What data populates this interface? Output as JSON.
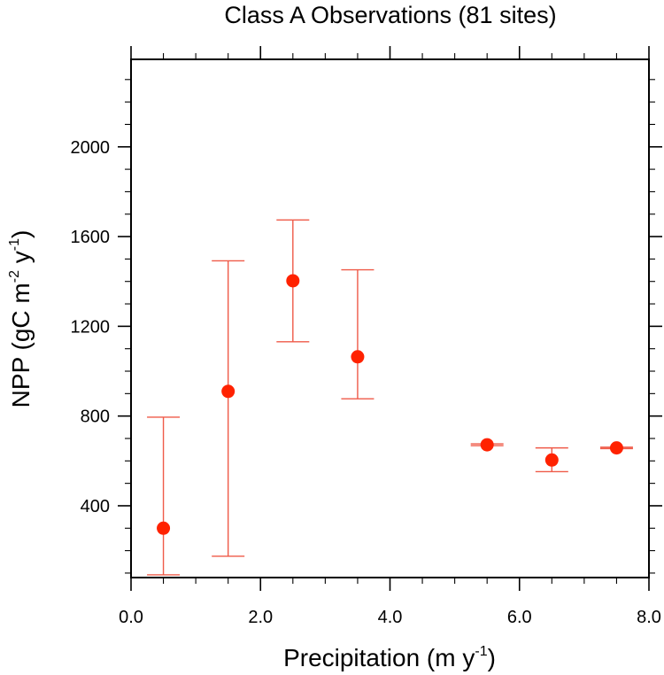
{
  "chart_data": {
    "type": "scatter",
    "title": "Class A Observations (81 sites)",
    "xlabel": "Precipitation (m y^-1)",
    "xlabel_parts": {
      "base": "Precipitation (m y",
      "sup": "-1",
      "tail": ")"
    },
    "ylabel": "NPP (gC m^-2 y^-1)",
    "ylabel_parts": {
      "p1": "NPP (gC m",
      "sup1": "-2",
      "p2": " y",
      "sup2": "-1",
      "tail": ")"
    },
    "xlim": [
      0,
      8
    ],
    "ylim": [
      80,
      2390
    ],
    "x_major_ticks": [
      0,
      2,
      4,
      6,
      8
    ],
    "x_tick_labels": [
      "0.0",
      "2.0",
      "4.0",
      "6.0",
      "8.0"
    ],
    "x_minor_step": 0.5,
    "y_major_ticks": [
      400,
      800,
      1200,
      1600,
      2000
    ],
    "y_tick_labels": [
      "400",
      "800",
      "1200",
      "1600",
      "2000"
    ],
    "y_minor_step": 100,
    "grid": false,
    "legend": "none",
    "marker_color": "#ff2200",
    "errorbar_color": "#ef5a48",
    "series": [
      {
        "name": "Class A Observations",
        "x": [
          0.5,
          1.5,
          2.5,
          3.5,
          5.5,
          6.5,
          7.5
        ],
        "y": [
          300,
          910,
          1403,
          1064,
          672,
          604,
          658
        ],
        "y_upper": [
          795,
          1492,
          1674,
          1452,
          676,
          658,
          661
        ],
        "y_lower": [
          92,
          175,
          1131,
          877,
          668,
          552,
          655
        ]
      }
    ]
  }
}
